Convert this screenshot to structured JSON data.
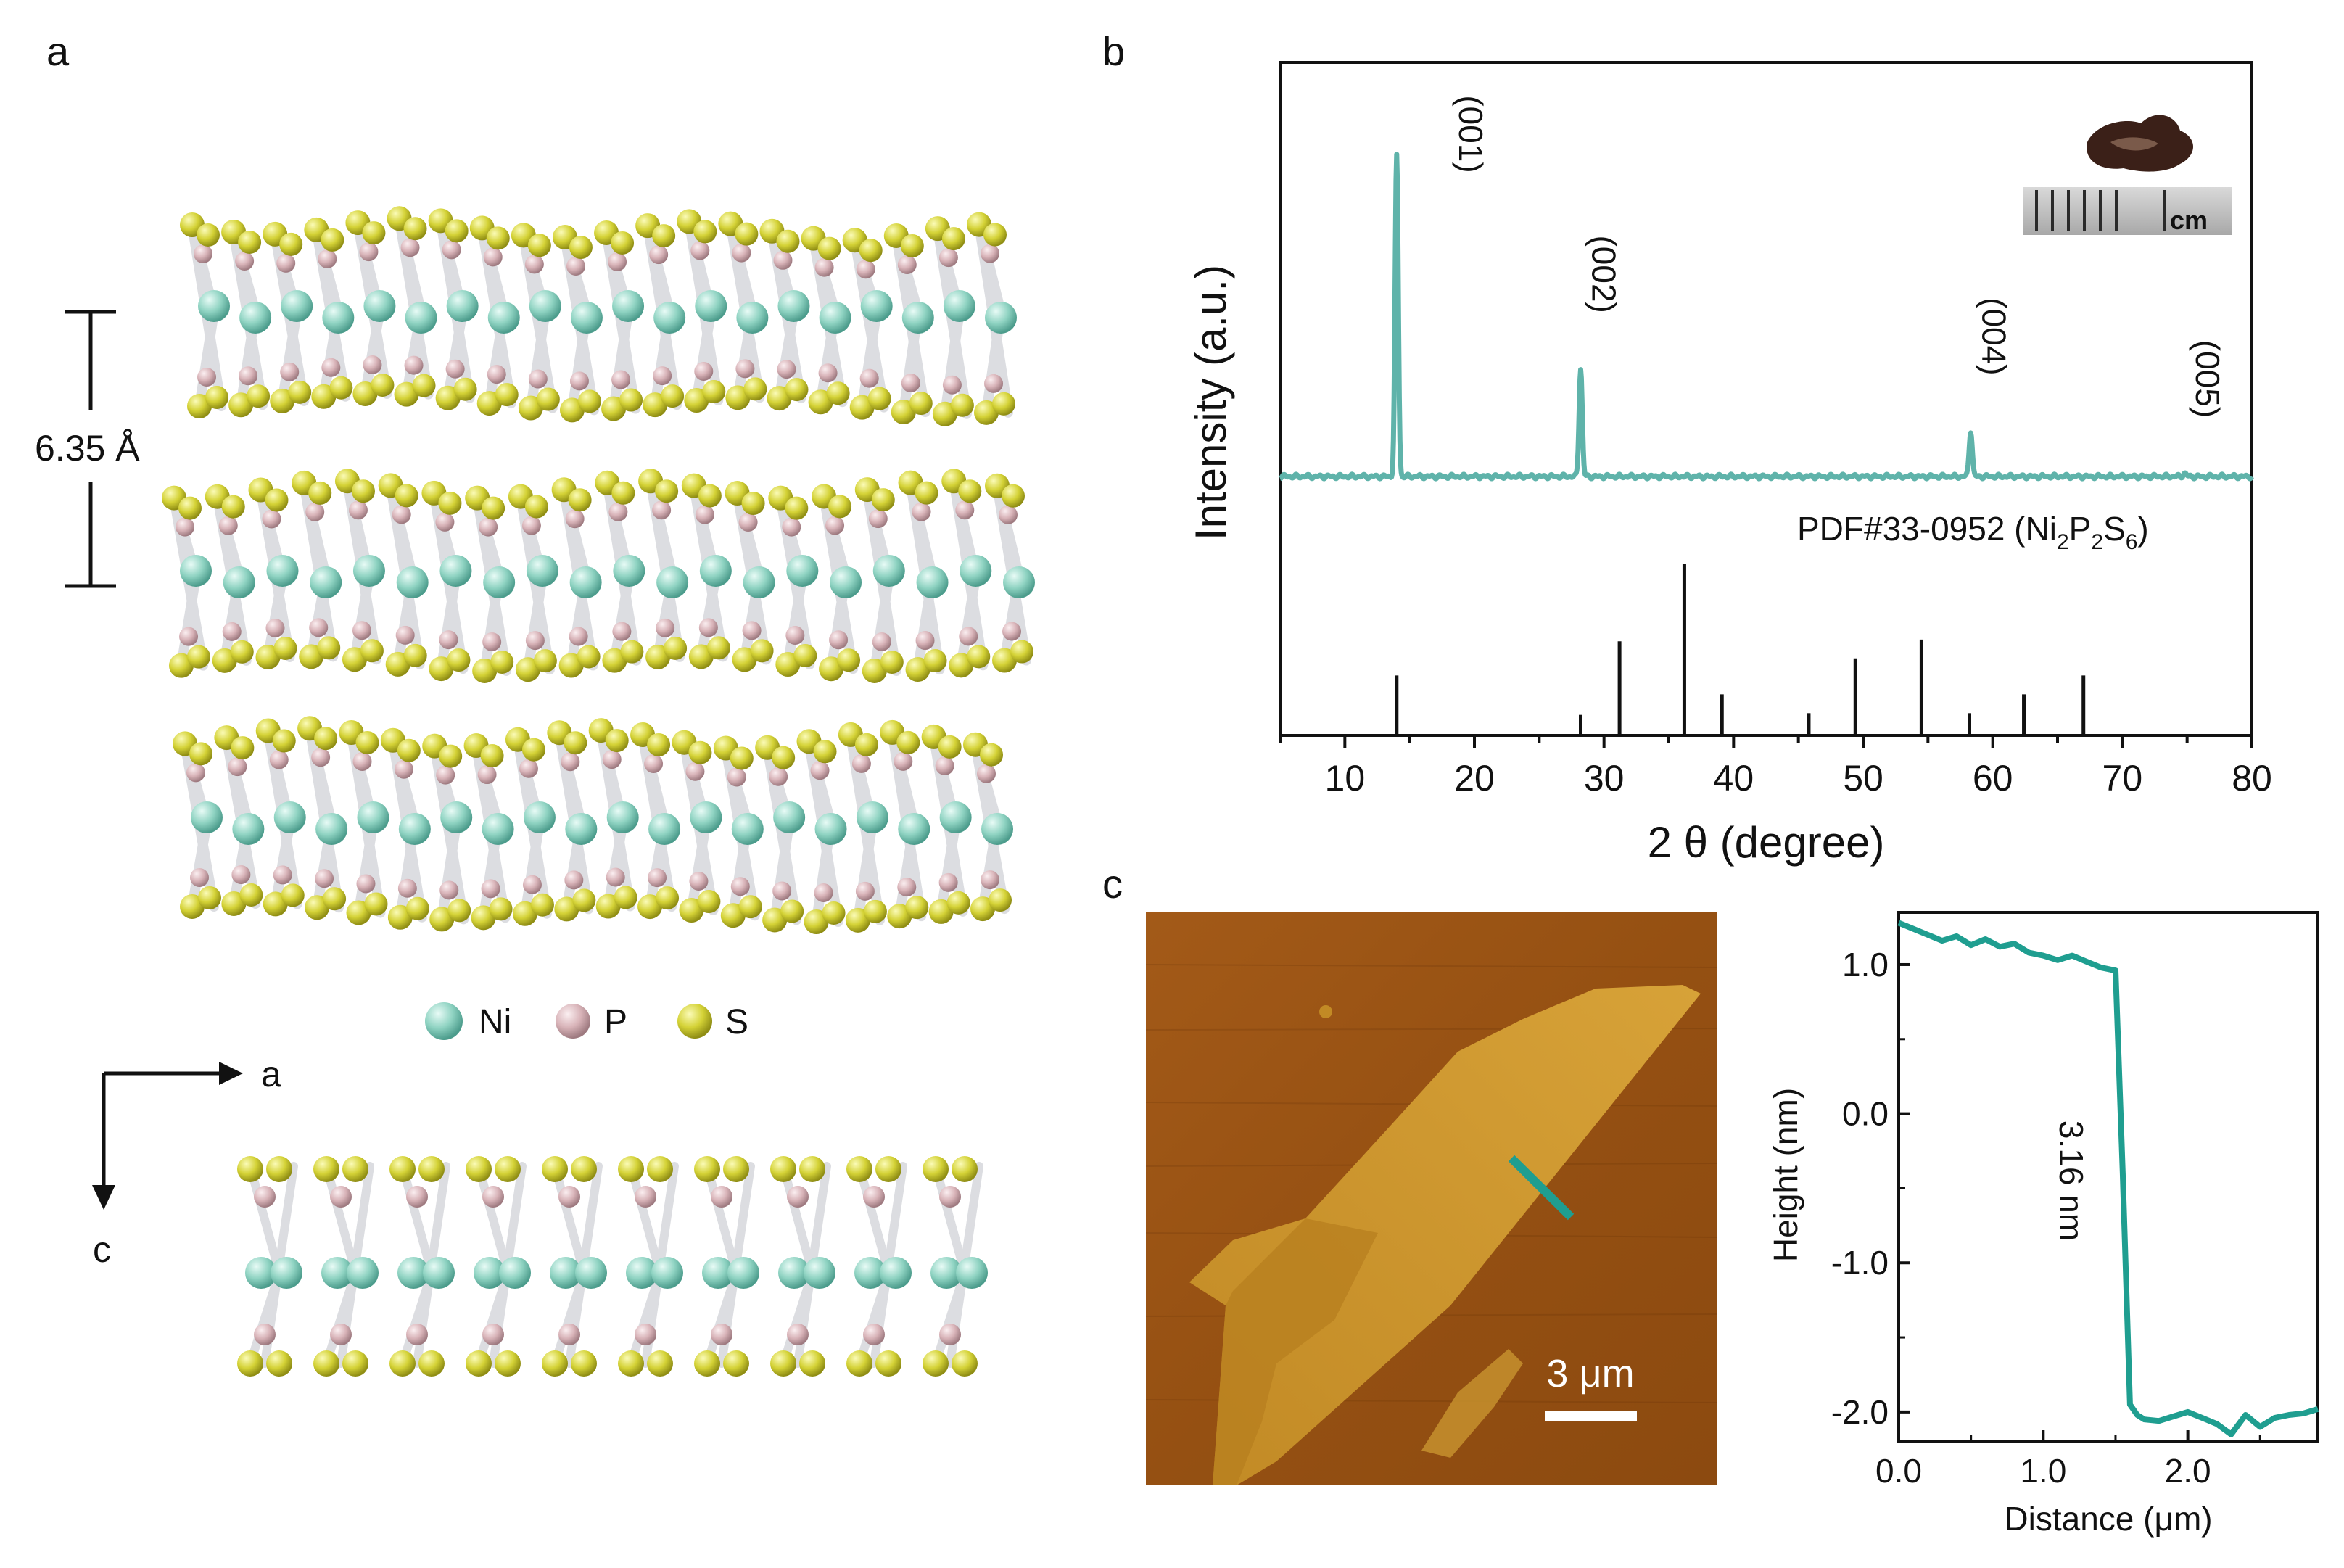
{
  "panels": {
    "a": {
      "label": "a",
      "spacing_label": "6.35 Å",
      "legend": [
        {
          "symbol": "Ni",
          "color": "#8fd3c2"
        },
        {
          "symbol": "P",
          "color": "#d8b3b8"
        },
        {
          "symbol": "S",
          "color": "#d4d236"
        }
      ],
      "axis_right": "a",
      "axis_down": "c"
    },
    "b": {
      "label": "b",
      "inset_scale_unit": "cm",
      "reference_label": "PDF#33-0952 (Ni",
      "reference_sub1": "2",
      "reference_mid1": "P",
      "reference_sub2": "2",
      "reference_mid2": "S",
      "reference_sub3": "6",
      "reference_close": ")"
    },
    "c": {
      "label": "c",
      "scale_bar_label": "3 μm",
      "step_annotation": "3.16 nm"
    }
  },
  "chart_data": [
    {
      "type": "line",
      "title": "",
      "xlabel": "2 θ (degree)",
      "ylabel": "Intensity (a.u.)",
      "xlim": [
        5,
        80
      ],
      "xticks": [
        10,
        20,
        30,
        40,
        50,
        60,
        70,
        80
      ],
      "grid": false,
      "series": [
        {
          "name": "Ni2P2S6 crystal",
          "color": "#5fb3aa",
          "baseline": 0.02,
          "peaks": [
            {
              "x": 14.0,
              "y": 1.0,
              "label": "(001)"
            },
            {
              "x": 28.2,
              "y": 0.35,
              "label": "(002)"
            },
            {
              "x": 58.3,
              "y": 0.16,
              "label": "(004)"
            },
            {
              "x": 74.8,
              "y": 0.03,
              "label": "(005)"
            }
          ]
        },
        {
          "name": "PDF#33-0952 (Ni2P2S6)",
          "color": "#111111",
          "type": "stick",
          "sticks": [
            {
              "x": 14.0,
              "y": 0.35
            },
            {
              "x": 28.2,
              "y": 0.12
            },
            {
              "x": 31.2,
              "y": 0.55
            },
            {
              "x": 36.2,
              "y": 1.0
            },
            {
              "x": 39.1,
              "y": 0.24
            },
            {
              "x": 45.8,
              "y": 0.13
            },
            {
              "x": 49.4,
              "y": 0.45
            },
            {
              "x": 54.5,
              "y": 0.56
            },
            {
              "x": 58.2,
              "y": 0.13
            },
            {
              "x": 62.4,
              "y": 0.24
            },
            {
              "x": 67.0,
              "y": 0.35
            }
          ]
        }
      ]
    },
    {
      "type": "line",
      "title": "",
      "xlabel": "Distance (μm)",
      "ylabel": "Height (nm)",
      "xlim": [
        0.0,
        2.9
      ],
      "ylim": [
        -2.2,
        1.35
      ],
      "xticks": [
        "0.0",
        "1.0",
        "2.0"
      ],
      "yticks": [
        "1.0",
        "0.0",
        "-1.0",
        "-2.0"
      ],
      "grid": false,
      "series": [
        {
          "name": "height profile",
          "color": "#1f9e90",
          "x": [
            0.0,
            0.1,
            0.2,
            0.3,
            0.4,
            0.5,
            0.6,
            0.7,
            0.8,
            0.9,
            1.0,
            1.1,
            1.2,
            1.3,
            1.4,
            1.5,
            1.55,
            1.6,
            1.65,
            1.7,
            1.8,
            1.9,
            2.0,
            2.1,
            2.2,
            2.3,
            2.4,
            2.5,
            2.6,
            2.7,
            2.8,
            2.9
          ],
          "y": [
            1.28,
            1.24,
            1.2,
            1.16,
            1.19,
            1.13,
            1.17,
            1.12,
            1.14,
            1.08,
            1.06,
            1.03,
            1.06,
            1.02,
            0.98,
            0.96,
            -0.4,
            -1.95,
            -2.02,
            -2.05,
            -2.06,
            -2.03,
            -2.0,
            -2.04,
            -2.08,
            -2.15,
            -2.02,
            -2.1,
            -2.04,
            -2.02,
            -2.01,
            -1.98
          ]
        }
      ]
    }
  ]
}
